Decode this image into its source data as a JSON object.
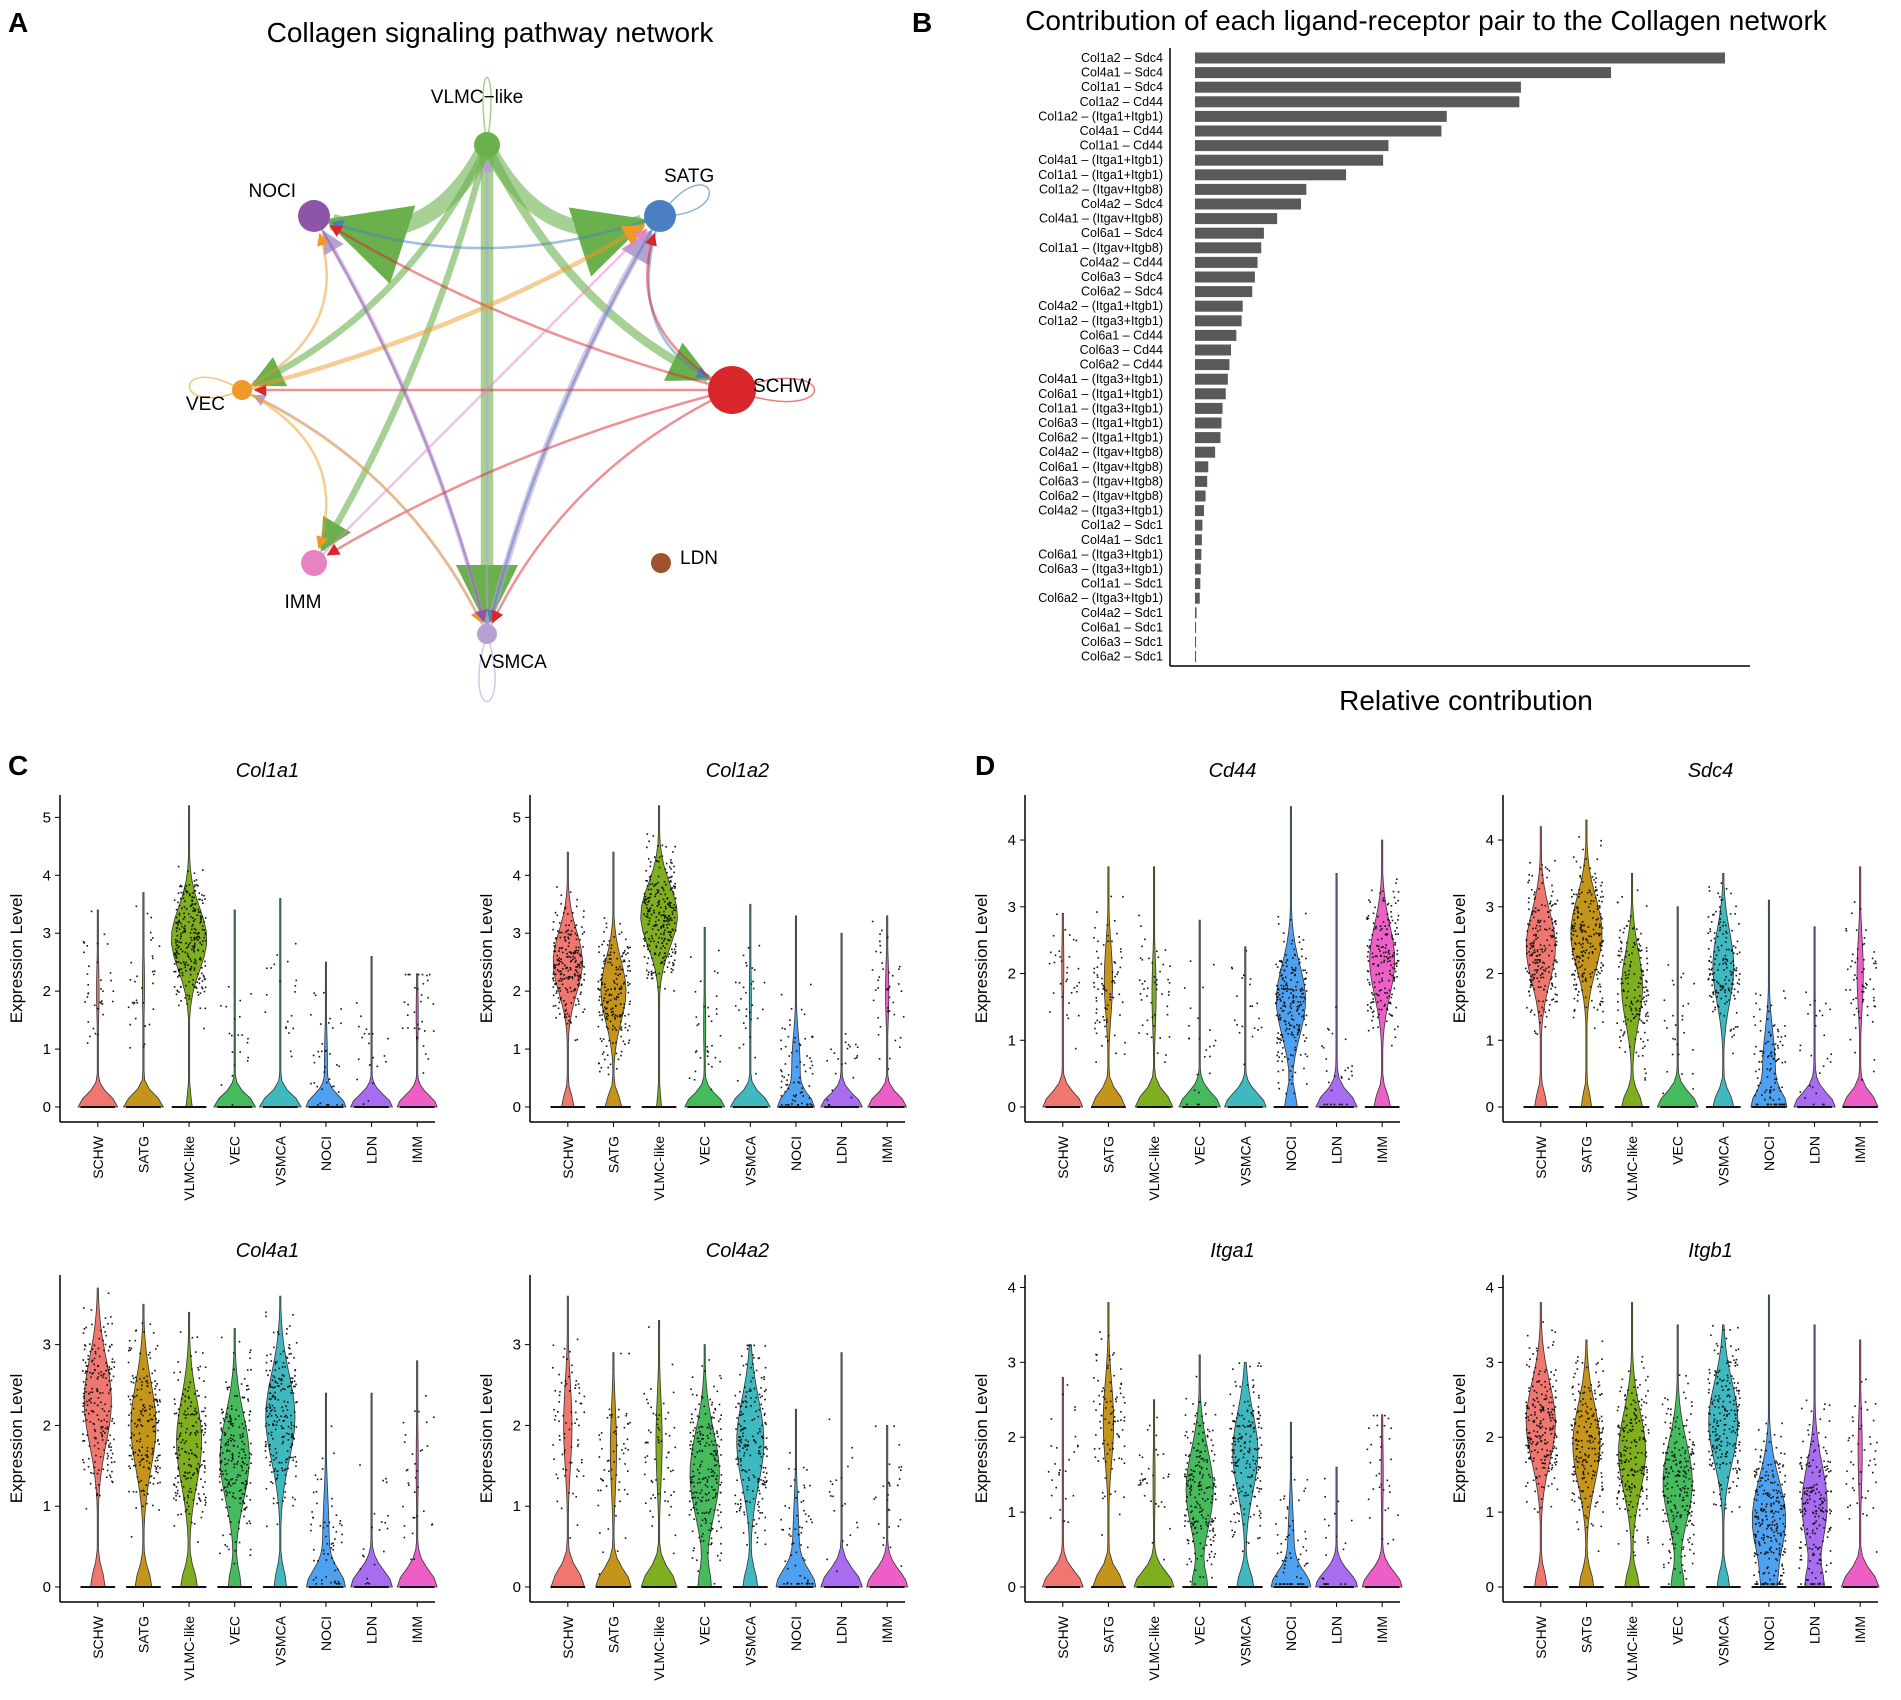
{
  "panel_letters": {
    "a": "A",
    "b": "B",
    "c": "C",
    "d": "D"
  },
  "colors": {
    "SCHW": "#d9262a",
    "SATG": "#4a7fc1",
    "VLMC-like": "#6ab04c",
    "VEC": "#ef9a27",
    "VSMCA": "#b7a0d3",
    "NOCI": "#8e54a8",
    "LDN": "#a0522d",
    "IMM": "#e783c3",
    "bars": "#595959",
    "violin": {
      "SCHW": "#f0776f",
      "SATG": "#c5941b",
      "VLMC-like": "#7fae1f",
      "VEC": "#46bb5e",
      "VSMCA": "#3fb8c0",
      "NOCI": "#4ea1f0",
      "LDN": "#a86cf0",
      "IMM": "#ed5ec6"
    }
  },
  "network": {
    "title": "Collagen signaling pathway network",
    "nodes": [
      {
        "name": "VLMC-like",
        "label": "VLMC−like",
        "size": 2
      },
      {
        "name": "NOCI",
        "label": "NOCI",
        "size": 3
      },
      {
        "name": "SATG",
        "label": "SATG",
        "size": 3
      },
      {
        "name": "VEC",
        "label": "VEC",
        "size": 1
      },
      {
        "name": "SCHW",
        "label": "SCHW",
        "size": 5
      },
      {
        "name": "IMM",
        "label": "IMM",
        "size": 2
      },
      {
        "name": "VSMCA",
        "label": "VSMCA",
        "size": 1
      },
      {
        "name": "LDN",
        "label": "LDN",
        "size": 1
      }
    ],
    "edges": [
      {
        "from": "VLMC-like",
        "to": "NOCI",
        "weight": 8
      },
      {
        "from": "VLMC-like",
        "to": "SATG",
        "weight": 7
      },
      {
        "from": "VLMC-like",
        "to": "VSMCA",
        "weight": 6
      },
      {
        "from": "VLMC-like",
        "to": "SCHW",
        "weight": 4
      },
      {
        "from": "VLMC-like",
        "to": "VEC",
        "weight": 3
      },
      {
        "from": "VLMC-like",
        "to": "IMM",
        "weight": 3
      },
      {
        "from": "VSMCA",
        "to": "VLMC-like",
        "weight": 1
      },
      {
        "from": "VSMCA",
        "to": "NOCI",
        "weight": 2
      },
      {
        "from": "VSMCA",
        "to": "SATG",
        "weight": 3
      },
      {
        "from": "VSMCA",
        "to": "VEC",
        "weight": 1
      },
      {
        "from": "SATG",
        "to": "NOCI",
        "weight": 1
      },
      {
        "from": "SATG",
        "to": "VSMCA",
        "weight": 1
      },
      {
        "from": "SATG",
        "to": "SCHW",
        "weight": 1
      },
      {
        "from": "SCHW",
        "to": "SATG",
        "weight": 1
      },
      {
        "from": "SCHW",
        "to": "NOCI",
        "weight": 1
      },
      {
        "from": "SCHW",
        "to": "VEC",
        "weight": 1
      },
      {
        "from": "SCHW",
        "to": "IMM",
        "weight": 1
      },
      {
        "from": "SCHW",
        "to": "VSMCA",
        "weight": 1
      },
      {
        "from": "VEC",
        "to": "SATG",
        "weight": 2
      },
      {
        "from": "VEC",
        "to": "NOCI",
        "weight": 1
      },
      {
        "from": "VEC",
        "to": "IMM",
        "weight": 1
      },
      {
        "from": "VEC",
        "to": "VSMCA",
        "weight": 1
      },
      {
        "from": "NOCI",
        "to": "VSMCA",
        "weight": 1
      },
      {
        "from": "IMM",
        "to": "SATG",
        "weight": 1
      }
    ],
    "loops": [
      "VLMC-like",
      "SATG",
      "VEC",
      "SCHW",
      "VSMCA"
    ]
  },
  "bar_chart": {
    "title": "Contribution of each ligand-receptor pair to the Collagen network",
    "xlabel": "Relative contribution",
    "pairs": [
      "Col1a2  – Sdc4",
      "Col4a1  – Sdc4",
      "Col1a1  – Sdc4",
      "Col1a2  – Cd44",
      "Col1a2  – (Itga1+Itgb1)",
      "Col4a1  – Cd44",
      "Col1a1  – Cd44",
      "Col4a1  – (Itga1+Itgb1)",
      "Col1a1  – (Itga1+Itgb1)",
      "Col1a2  – (Itgav+Itgb8)",
      "Col4a2  – Sdc4",
      "Col4a1  – (Itgav+Itgb8)",
      "Col6a1  – Sdc4",
      "Col1a1  – (Itgav+Itgb8)",
      "Col4a2  – Cd44",
      "Col6a3  – Sdc4",
      "Col6a2  – Sdc4",
      "Col4a2  – (Itga1+Itgb1)",
      "Col1a2  – (Itga3+Itgb1)",
      "Col6a1  – Cd44",
      "Col6a3  – Cd44",
      "Col6a2  – Cd44",
      "Col4a1  – (Itga3+Itgb1)",
      "Col6a1  – (Itga1+Itgb1)",
      "Col1a1  – (Itga3+Itgb1)",
      "Col6a3  – (Itga1+Itgb1)",
      "Col6a2  – (Itga1+Itgb1)",
      "Col4a2  – (Itgav+Itgb8)",
      "Col6a1  – (Itgav+Itgb8)",
      "Col6a3  – (Itgav+Itgb8)",
      "Col6a2  – (Itgav+Itgb8)",
      "Col4a2  – (Itga3+Itgb1)",
      "Col1a2  – Sdc1",
      "Col4a1  – Sdc1",
      "Col6a1  – (Itga3+Itgb1)",
      "Col6a3  – (Itga3+Itgb1)",
      "Col1a1  – Sdc1",
      "Col6a2  – (Itga3+Itgb1)",
      "Col4a2  – Sdc1",
      "Col6a1  – Sdc1",
      "Col6a3  – Sdc1",
      "Col6a2  – Sdc1"
    ],
    "values": [
      1.0,
      0.785,
      0.615,
      0.612,
      0.475,
      0.465,
      0.365,
      0.355,
      0.285,
      0.21,
      0.2,
      0.155,
      0.13,
      0.125,
      0.118,
      0.113,
      0.108,
      0.09,
      0.088,
      0.078,
      0.068,
      0.065,
      0.062,
      0.058,
      0.052,
      0.05,
      0.048,
      0.038,
      0.025,
      0.023,
      0.02,
      0.017,
      0.014,
      0.013,
      0.012,
      0.011,
      0.01,
      0.009,
      0.003,
      0.002,
      0.002,
      0.002
    ]
  },
  "violin_common": {
    "categories": [
      "SCHW",
      "SATG",
      "VLMC-like",
      "VEC",
      "VSMCA",
      "NOCI",
      "LDN",
      "IMM"
    ],
    "ylabel": "Expression Level"
  },
  "violins": [
    {
      "gene": "Col1a1",
      "panel": "C",
      "yticks": [
        "0",
        "1",
        "2",
        "3",
        "4",
        "5"
      ],
      "ymax": 5.3,
      "zero_fraction": [
        0.94,
        0.95,
        0.15,
        0.99,
        0.995,
        0.93,
        0.995,
        0.95
      ],
      "mean": [
        2.0,
        2.1,
        2.9,
        1.2,
        1.5,
        0.8,
        1.0,
        1.6
      ],
      "max": [
        3.4,
        3.7,
        5.2,
        3.4,
        3.6,
        2.5,
        2.6,
        2.3
      ]
    },
    {
      "gene": "Col1a2",
      "panel": "C",
      "yticks": [
        "0",
        "1",
        "2",
        "3",
        "4",
        "5"
      ],
      "ymax": 5.3,
      "zero_fraction": [
        0.3,
        0.4,
        0.12,
        0.95,
        0.95,
        0.8,
        0.98,
        0.92
      ],
      "mean": [
        2.5,
        2.0,
        3.3,
        1.4,
        1.9,
        0.7,
        0.6,
        2.0
      ],
      "max": [
        4.4,
        4.4,
        5.2,
        3.1,
        3.5,
        3.3,
        3.0,
        3.3
      ]
    },
    {
      "gene": "Col4a1",
      "panel": "C",
      "yticks": [
        "0",
        "1",
        "2",
        "3"
      ],
      "ymax": 3.8,
      "zero_fraction": [
        0.35,
        0.4,
        0.4,
        0.3,
        0.3,
        0.85,
        0.99,
        0.95
      ],
      "mean": [
        2.3,
        2.0,
        1.8,
        1.6,
        2.1,
        0.6,
        0.7,
        1.5
      ],
      "max": [
        3.7,
        3.5,
        3.4,
        3.2,
        3.6,
        2.4,
        2.4,
        2.8
      ]
    },
    {
      "gene": "Col4a2",
      "panel": "C",
      "yticks": [
        "0",
        "1",
        "2",
        "3"
      ],
      "ymax": 3.8,
      "zero_fraction": [
        0.8,
        0.85,
        0.85,
        0.3,
        0.35,
        0.85,
        0.99,
        0.97
      ],
      "mean": [
        2.0,
        1.7,
        1.8,
        1.4,
        1.8,
        0.5,
        1.0,
        1.2
      ],
      "max": [
        3.6,
        2.9,
        3.3,
        3.0,
        3.0,
        2.2,
        2.9,
        2.0
      ]
    },
    {
      "gene": "Cd44",
      "panel": "D",
      "yticks": [
        "0",
        "1",
        "2",
        "3",
        "4"
      ],
      "ymax": 4.6,
      "zero_fraction": [
        0.95,
        0.8,
        0.9,
        0.98,
        0.99,
        0.3,
        0.97,
        0.4
      ],
      "mean": [
        2.1,
        1.9,
        1.7,
        1.0,
        1.5,
        1.6,
        0.6,
        2.2
      ],
      "max": [
        2.9,
        3.6,
        3.6,
        2.8,
        2.4,
        4.5,
        3.5,
        4.0
      ]
    },
    {
      "gene": "Sdc4",
      "panel": "D",
      "yticks": [
        "0",
        "1",
        "2",
        "3",
        "4"
      ],
      "ymax": 4.6,
      "zero_fraction": [
        0.3,
        0.25,
        0.5,
        0.97,
        0.5,
        0.7,
        0.97,
        0.85
      ],
      "mean": [
        2.4,
        2.6,
        1.8,
        1.3,
        2.1,
        0.6,
        0.6,
        2.0
      ],
      "max": [
        4.2,
        4.3,
        3.5,
        3.0,
        3.5,
        3.1,
        2.7,
        3.6
      ]
    },
    {
      "gene": "Itga1",
      "panel": "D",
      "yticks": [
        "0",
        "1",
        "2",
        "3",
        "4"
      ],
      "ymax": 4.1,
      "zero_fraction": [
        0.97,
        0.75,
        0.95,
        0.35,
        0.4,
        0.85,
        0.99,
        0.95
      ],
      "mean": [
        1.6,
        2.2,
        1.4,
        1.3,
        1.8,
        0.5,
        0.5,
        1.5
      ],
      "max": [
        2.8,
        3.8,
        2.5,
        3.1,
        3.0,
        2.2,
        1.6,
        2.3
      ]
    },
    {
      "gene": "Itgb1",
      "panel": "D",
      "yticks": [
        "0",
        "1",
        "2",
        "3",
        "4"
      ],
      "ymax": 4.1,
      "zero_fraction": [
        0.3,
        0.35,
        0.35,
        0.3,
        0.3,
        0.2,
        0.4,
        0.9
      ],
      "mean": [
        2.2,
        1.9,
        1.8,
        1.4,
        2.2,
        0.9,
        1.1,
        1.8
      ],
      "max": [
        3.8,
        3.3,
        3.8,
        3.5,
        3.5,
        3.9,
        3.5,
        3.3
      ]
    }
  ]
}
